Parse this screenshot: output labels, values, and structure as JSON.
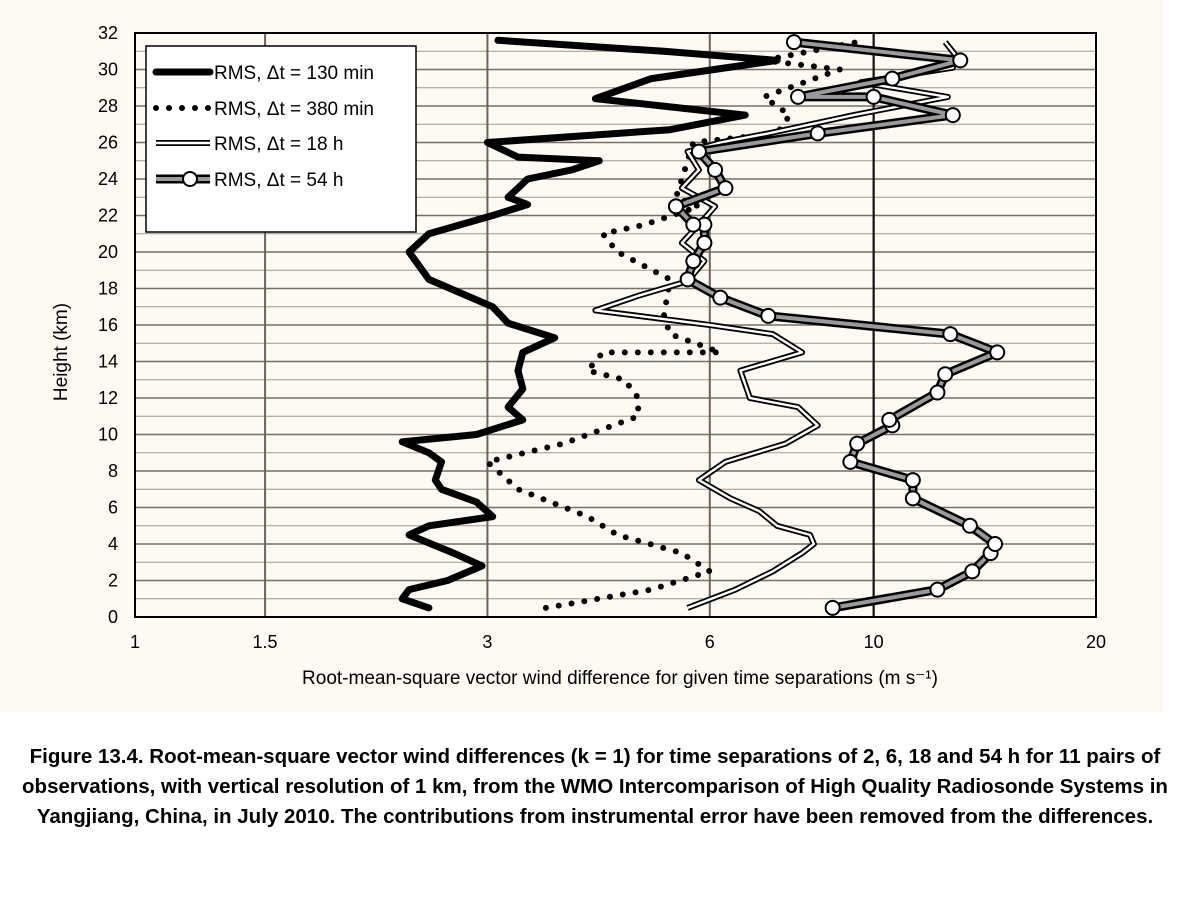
{
  "chart_data": {
    "type": "line",
    "x_scale": "log",
    "xlim": [
      1,
      20
    ],
    "ylim": [
      0,
      32
    ],
    "x_ticks": [
      1,
      1.5,
      3,
      6,
      10,
      20
    ],
    "x_tick_labels": [
      "1",
      "1.5",
      "3",
      "6",
      "10",
      "20"
    ],
    "y_ticks": [
      0,
      2,
      4,
      6,
      8,
      10,
      12,
      14,
      16,
      18,
      20,
      22,
      24,
      26,
      28,
      30,
      32
    ],
    "y_tick_labels": [
      "0",
      "2",
      "4",
      "6",
      "8",
      "10",
      "12",
      "14",
      "16",
      "18",
      "20",
      "22",
      "24",
      "26",
      "28",
      "30",
      "32"
    ],
    "xlabel": "Root-mean-square vector wind difference for given time separations (m s⁻¹)",
    "ylabel": "Height (km)",
    "grid": "horizontal lines every 1 km; vertical lines at 1.5, 3, 6, 10",
    "legend_position": "top-left",
    "series": [
      {
        "name": "RMS, Δt = 130 min",
        "style": "thick solid black",
        "x": [
          2.5,
          2.3,
          2.35,
          2.65,
          2.95,
          2.7,
          2.35,
          2.5,
          3.05,
          2.9,
          2.6,
          2.55,
          2.6,
          2.5,
          2.3,
          2.9,
          3.35,
          3.2,
          3.35,
          3.3,
          3.35,
          3.7,
          3.2,
          3.05,
          2.5,
          2.35,
          2.5,
          3.05,
          3.4,
          3.2,
          3.4,
          3.9,
          4.25,
          3.3,
          3.0,
          5.3,
          6.7,
          4.2,
          5.0,
          7.4,
          5.2,
          3.1
        ],
        "y": [
          0.5,
          1.0,
          1.5,
          2.0,
          2.8,
          3.5,
          4.5,
          5.0,
          5.5,
          6.3,
          7.0,
          7.5,
          8.5,
          9.0,
          9.6,
          10.0,
          10.8,
          11.5,
          12.5,
          13.5,
          14.5,
          15.3,
          16.1,
          17.0,
          18.5,
          20.0,
          21.0,
          22.0,
          22.6,
          23.0,
          24.0,
          24.5,
          25.0,
          25.2,
          26.0,
          26.7,
          27.5,
          28.4,
          29.5,
          30.5,
          31.0,
          31.6
        ]
      },
      {
        "name": "RMS, Δt = 380 min",
        "style": "dotted black",
        "x": [
          3.6,
          5.0,
          6.0,
          5.5,
          4.5,
          4.1,
          3.3,
          3.0,
          3.8,
          4.8,
          4.8,
          4.6,
          4.1,
          4.3,
          6.2,
          5.3,
          5.2,
          5.3,
          4.5,
          4.3,
          4.9,
          5.8,
          5.4,
          5.5,
          5.6,
          5.7,
          7.4,
          7.7,
          7.1,
          9.0,
          7.1,
          9.5
        ],
        "y": [
          0.5,
          1.5,
          2.5,
          3.5,
          4.5,
          5.5,
          7.0,
          8.5,
          9.5,
          11.0,
          12.0,
          13.0,
          13.5,
          14.5,
          14.5,
          15.5,
          16.5,
          18.5,
          20.0,
          21.0,
          21.5,
          22.5,
          23.0,
          24.0,
          25.0,
          26.0,
          26.5,
          27.5,
          28.5,
          30.0,
          30.5,
          31.5
        ]
      },
      {
        "name": "RMS, Δt = 18 h",
        "style": "double-line outline",
        "x": [
          5.6,
          6.5,
          7.3,
          8.0,
          8.3,
          8.2,
          7.4,
          7.0,
          6.4,
          5.8,
          6.3,
          7.6,
          8.4,
          7.9,
          6.8,
          6.6,
          8.0,
          7.3,
          6.0,
          4.2,
          4.8,
          5.6,
          5.9,
          5.5,
          5.8,
          6.1,
          5.5,
          5.8,
          5.6,
          6.2,
          7.2,
          9.4,
          12.6,
          9.6,
          12.8,
          12.9,
          12.5
        ],
        "y": [
          0.5,
          1.5,
          2.5,
          3.5,
          4.0,
          4.5,
          5.0,
          5.8,
          6.5,
          7.5,
          8.5,
          9.5,
          10.5,
          11.5,
          12.0,
          13.5,
          14.5,
          15.5,
          16.0,
          16.8,
          17.6,
          18.4,
          19.5,
          20.5,
          21.5,
          22.5,
          23.5,
          24.5,
          25.5,
          26.0,
          26.5,
          27.5,
          28.5,
          29.3,
          30.1,
          30.8,
          31.5
        ]
      },
      {
        "name": "RMS, Δt = 54 h",
        "style": "thick double line with open circle markers",
        "x": [
          8.8,
          12.2,
          13.6,
          14.4,
          14.6,
          13.5,
          11.3,
          11.3,
          9.3,
          9.5,
          10.6,
          10.5,
          12.2,
          12.5,
          14.7,
          12.7,
          7.2,
          6.2,
          5.6,
          5.7,
          5.9,
          5.9,
          5.7,
          5.4,
          5.4,
          6.3,
          6.1,
          5.8,
          8.4,
          12.8,
          10.0,
          7.9,
          10.6,
          13.1,
          7.8
        ],
        "y": [
          0.5,
          1.5,
          2.5,
          3.5,
          4.0,
          5.0,
          6.5,
          7.5,
          8.5,
          9.5,
          10.5,
          10.8,
          12.3,
          13.3,
          14.5,
          15.5,
          16.5,
          17.5,
          18.5,
          19.5,
          20.5,
          21.5,
          21.5,
          22.5,
          22.5,
          23.5,
          24.5,
          25.5,
          26.5,
          27.5,
          28.5,
          28.5,
          29.5,
          30.5,
          31.5
        ]
      }
    ]
  },
  "caption": "Figure 13.4. Root-mean-square vector wind differences (k = 1) for time separations of 2, 6, 18 and 54 h for 11 pairs of observations, with vertical resolution of 1 km, from the WMO Intercomparison of High Quality Radiosonde Systems in Yangjiang, China, in July 2010. The contributions from instrumental error have been removed from the differences."
}
